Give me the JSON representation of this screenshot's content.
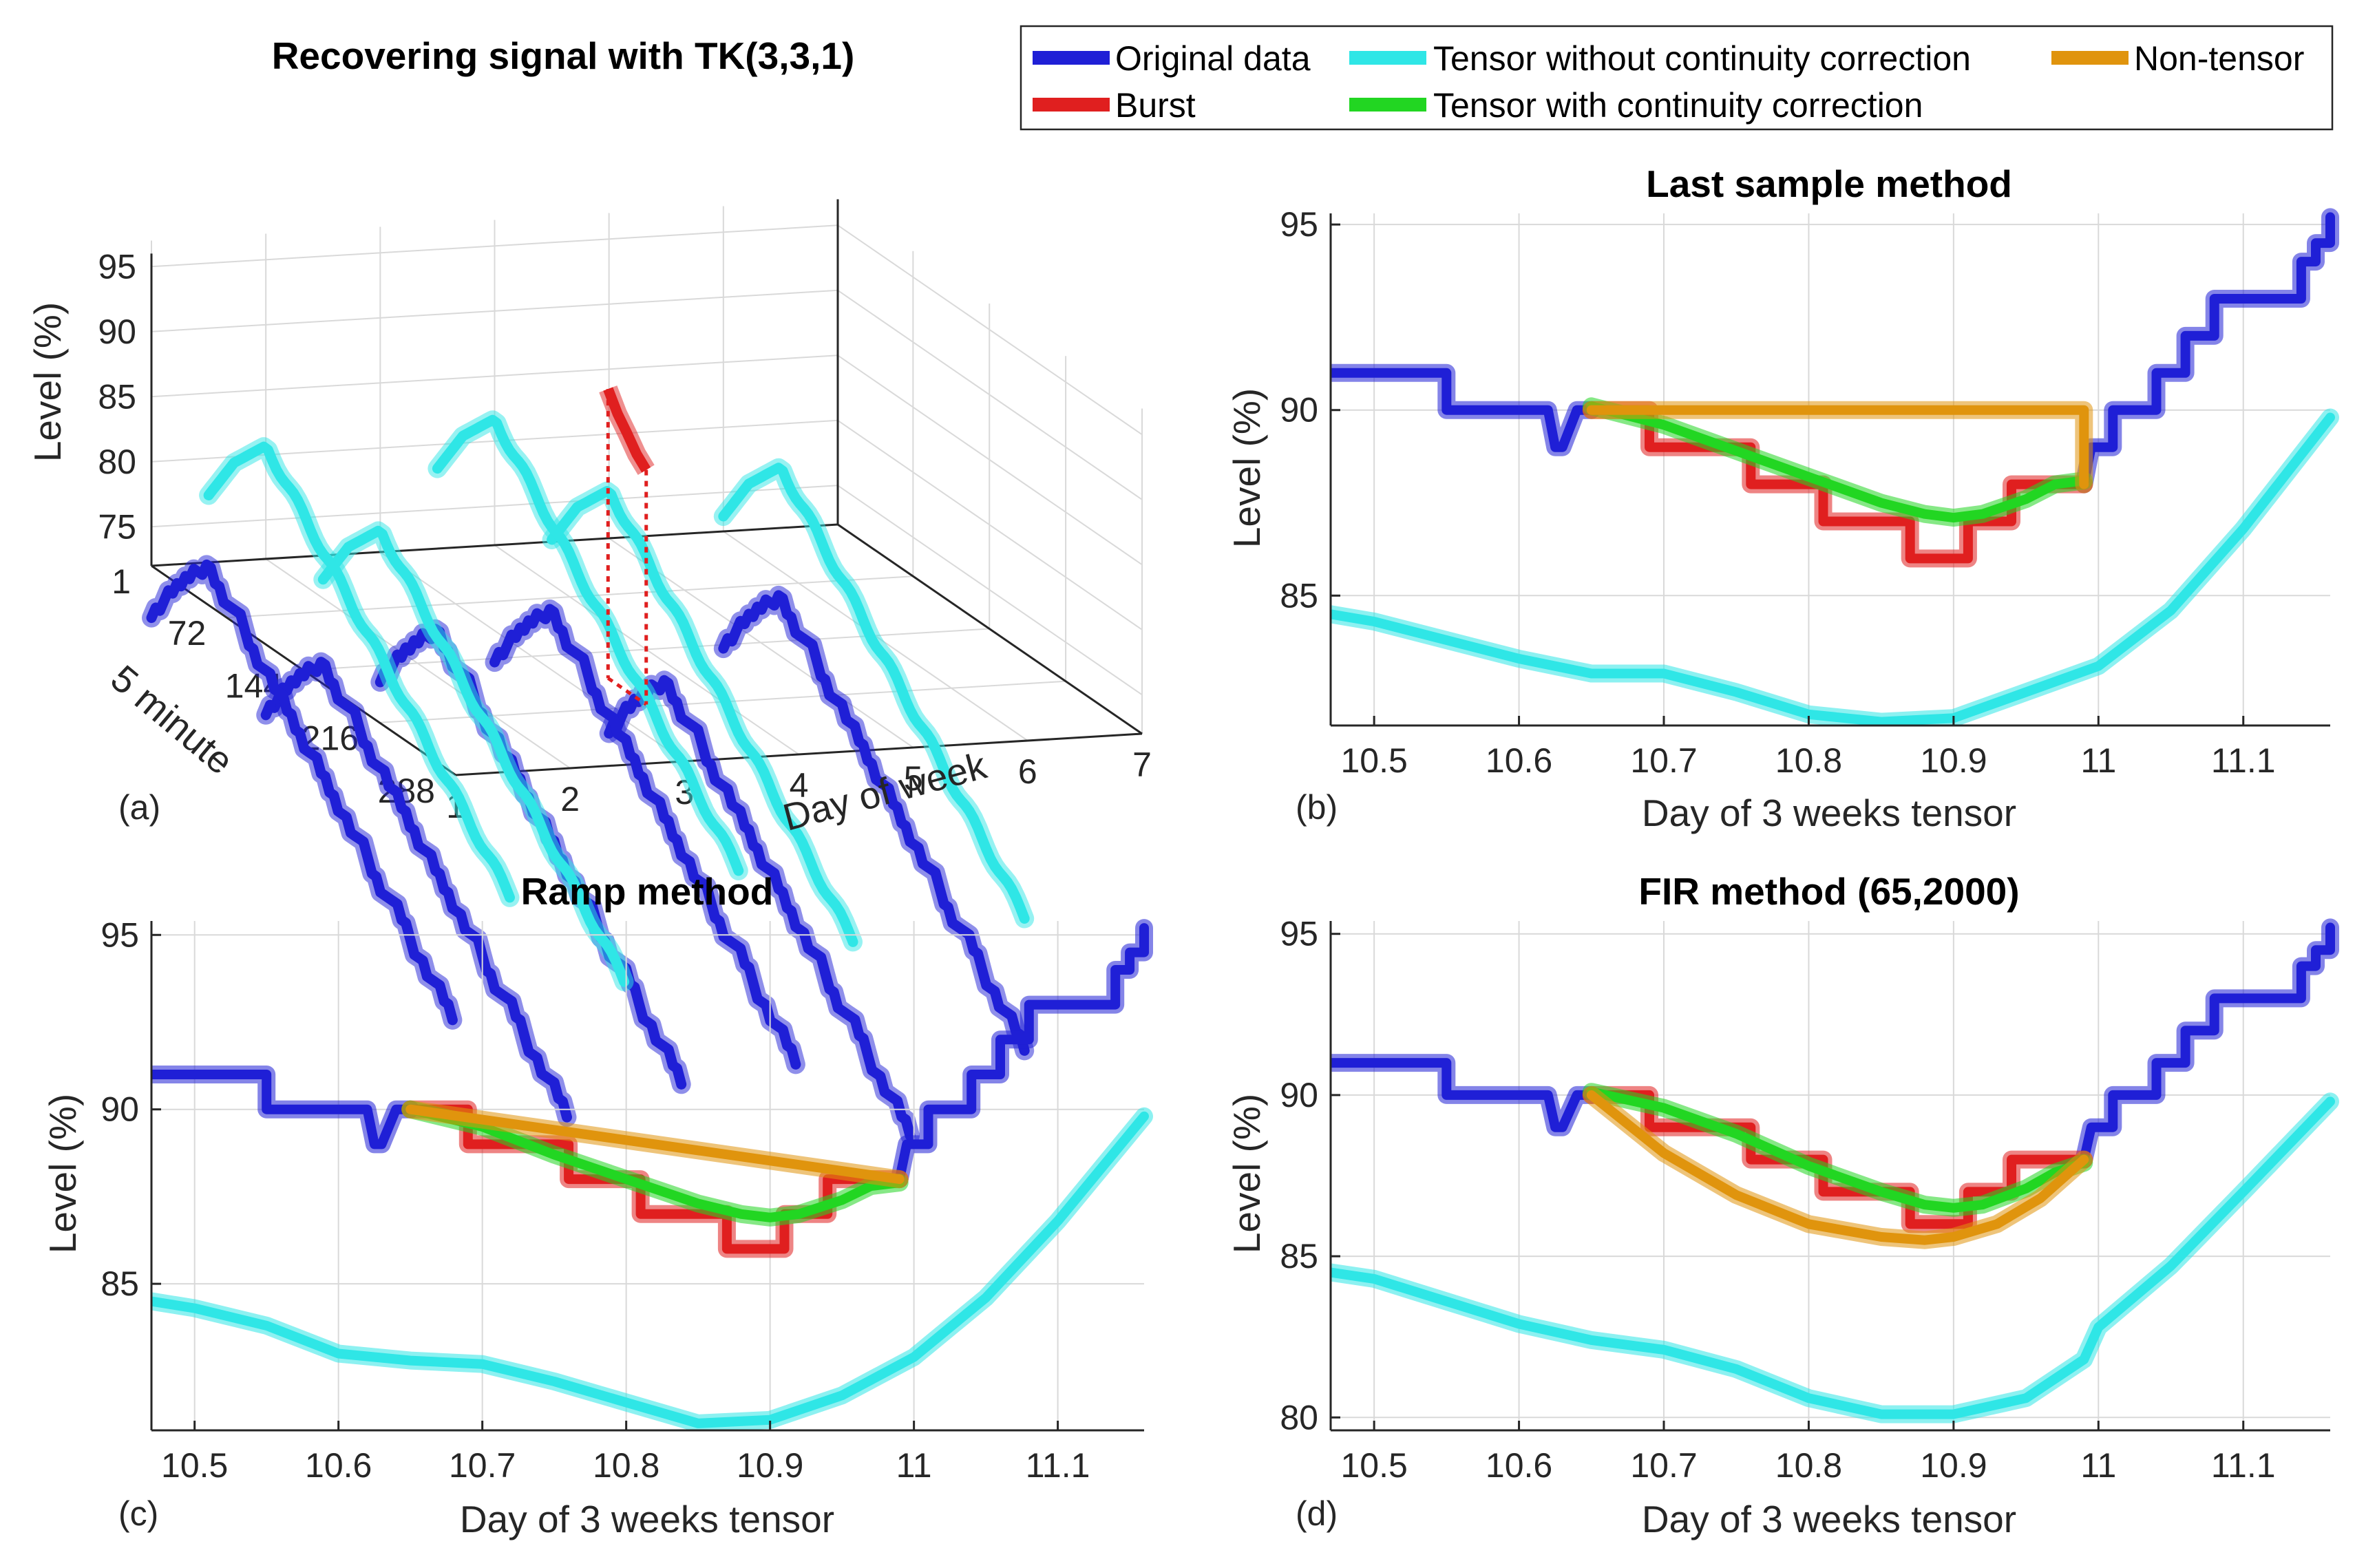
{
  "colors": {
    "original": "#1f1fd6",
    "burst": "#e01f1f",
    "tensor_no_corr": "#2fe6e6",
    "tensor_corr": "#22d622",
    "non_tensor": "#e0940d"
  },
  "legend": {
    "original": "Original data",
    "tensor_no_corr": "Tensor without continuity correction",
    "non_tensor": "Non-tensor",
    "burst": "Burst",
    "tensor_corr": "Tensor with continuity correction"
  },
  "chart_data": [
    {
      "id": "a",
      "panel_label": "(a)",
      "type": "line",
      "title": "Recovering signal with TK(3,3,1)",
      "xlabel": "Day of week",
      "ylabel": "5 minute",
      "zlabel": "Level (%)",
      "x_ticks": [
        "1",
        "2",
        "3",
        "4",
        "5",
        "6",
        "7"
      ],
      "y_ticks": [
        "1",
        "72",
        "144",
        "216",
        "288"
      ],
      "z_ticks": [
        "75",
        "80",
        "85",
        "90",
        "95"
      ],
      "xlim": [
        1,
        7
      ],
      "ylim": [
        1,
        288
      ],
      "zlim": [
        72,
        97
      ],
      "series": [
        {
          "name": "Original data",
          "color_key": "original",
          "curves": [
            {
              "day": 1,
              "start": 68
            },
            {
              "day": 2,
              "start": 60
            },
            {
              "day": 3,
              "start": 62
            },
            {
              "day": 4,
              "start": 63
            },
            {
              "day": 5,
              "start": 57
            },
            {
              "day": 6,
              "start": 63
            }
          ]
        },
        {
          "name": "Tensor without continuity correction",
          "color_key": "tensor_no_corr",
          "curves": [
            {
              "day": 1.5,
              "start": 77
            },
            {
              "day": 2.5,
              "start": 70
            },
            {
              "day": 3.5,
              "start": 78
            },
            {
              "day": 4.5,
              "start": 72
            },
            {
              "day": 6,
              "start": 73
            }
          ]
        },
        {
          "name": "Burst",
          "color_key": "burst",
          "day": 4,
          "y_range": [
            108,
            144
          ],
          "values": [
            90.0,
            88.6,
            87.6,
            86.5,
            85.8
          ]
        }
      ]
    },
    {
      "id": "b",
      "panel_label": "(b)",
      "type": "line",
      "title": "Last sample method",
      "xlabel": "Day of 3 weeks tensor",
      "ylabel": "Level (%)",
      "xlim": [
        10.47,
        11.16
      ],
      "ylim": [
        81.5,
        95.3
      ],
      "x_ticks": [
        10.5,
        10.6,
        10.7,
        10.8,
        10.9,
        11,
        11.1
      ],
      "x_tick_labels": [
        "10.5",
        "10.6",
        "10.7",
        "10.8",
        "10.9",
        "11",
        "11.1"
      ],
      "y_ticks": [
        85,
        90,
        95
      ],
      "y_tick_labels": [
        "85",
        "90",
        "95"
      ],
      "series": [
        {
          "name": "Original data",
          "color_key": "original",
          "x": [
            10.47,
            10.55,
            10.55,
            10.62,
            10.625,
            10.63,
            10.64,
            10.65
          ],
          "y": [
            91,
            91,
            90,
            90,
            89,
            89,
            90,
            90
          ]
        },
        {
          "name": "Original data",
          "color_key": "original",
          "x": [
            10.99,
            10.995,
            11.01,
            11.01,
            11.04,
            11.04,
            11.06,
            11.06,
            11.08,
            11.08,
            11.1,
            11.1,
            11.14,
            11.14,
            11.15,
            11.15,
            11.16,
            11.16
          ],
          "y": [
            88,
            89,
            89,
            90,
            90,
            91,
            91,
            92,
            92,
            93,
            93,
            93,
            93,
            94,
            94,
            94.5,
            94.5,
            95.2
          ]
        },
        {
          "name": "Burst",
          "color_key": "burst",
          "x": [
            10.65,
            10.69,
            10.69,
            10.76,
            10.76,
            10.81,
            10.81,
            10.87,
            10.87,
            10.91,
            10.91,
            10.94,
            10.94,
            10.99,
            10.99
          ],
          "y": [
            90,
            90,
            89,
            89,
            88,
            88,
            87,
            87,
            86,
            86,
            87,
            87,
            88,
            88,
            88
          ]
        },
        {
          "name": "Tensor with continuity correction",
          "color_key": "tensor_corr",
          "x": [
            10.65,
            10.7,
            10.75,
            10.8,
            10.85,
            10.88,
            10.9,
            10.92,
            10.95,
            10.97,
            10.99
          ],
          "y": [
            90.1,
            89.6,
            88.9,
            88.2,
            87.5,
            87.2,
            87.1,
            87.2,
            87.6,
            88.0,
            88.1
          ]
        },
        {
          "name": "Non-tensor",
          "color_key": "non_tensor",
          "x": [
            10.65,
            10.99,
            10.99
          ],
          "y": [
            90,
            90,
            88
          ]
        },
        {
          "name": "Tensor without continuity correction",
          "color_key": "tensor_no_corr",
          "x": [
            10.47,
            10.5,
            10.55,
            10.6,
            10.65,
            10.7,
            10.75,
            10.8,
            10.85,
            10.9,
            10.95,
            11,
            11.05,
            11.1,
            11.16
          ],
          "y": [
            84.5,
            84.3,
            83.8,
            83.3,
            82.9,
            82.9,
            82.4,
            81.8,
            81.6,
            81.7,
            82.4,
            83.1,
            84.6,
            86.8,
            89.8
          ]
        }
      ]
    },
    {
      "id": "c",
      "panel_label": "(c)",
      "type": "line",
      "title": "Ramp method",
      "xlabel": "Day of 3 weeks tensor",
      "ylabel": "Level (%)",
      "xlim": [
        10.47,
        11.16
      ],
      "ylim": [
        80.8,
        95.4
      ],
      "x_ticks": [
        10.5,
        10.6,
        10.7,
        10.8,
        10.9,
        11,
        11.1
      ],
      "x_tick_labels": [
        "10.5",
        "10.6",
        "10.7",
        "10.8",
        "10.9",
        "11",
        "11.1"
      ],
      "y_ticks": [
        85,
        90,
        95
      ],
      "y_tick_labels": [
        "85",
        "90",
        "95"
      ],
      "series": [
        {
          "name": "Original data",
          "color_key": "original",
          "x": [
            10.47,
            10.55,
            10.55,
            10.62,
            10.625,
            10.63,
            10.64,
            10.65
          ],
          "y": [
            91,
            91,
            90,
            90,
            89,
            89,
            90,
            90
          ]
        },
        {
          "name": "Original data",
          "color_key": "original",
          "x": [
            10.99,
            10.995,
            11.01,
            11.01,
            11.04,
            11.04,
            11.06,
            11.06,
            11.08,
            11.08,
            11.1,
            11.1,
            11.14,
            11.14,
            11.15,
            11.15,
            11.16,
            11.16
          ],
          "y": [
            88,
            89,
            89,
            90,
            90,
            91,
            91,
            92,
            92,
            93,
            93,
            93,
            93,
            94,
            94,
            94.5,
            94.5,
            95.2
          ]
        },
        {
          "name": "Burst",
          "color_key": "burst",
          "x": [
            10.65,
            10.69,
            10.69,
            10.76,
            10.76,
            10.81,
            10.81,
            10.87,
            10.87,
            10.91,
            10.91,
            10.94,
            10.94,
            10.99,
            10.99
          ],
          "y": [
            90,
            90,
            89,
            89,
            88,
            88,
            87,
            87,
            86,
            86,
            87,
            87,
            88,
            88,
            88
          ]
        },
        {
          "name": "Tensor with continuity correction",
          "color_key": "tensor_corr",
          "x": [
            10.65,
            10.7,
            10.75,
            10.8,
            10.85,
            10.88,
            10.9,
            10.92,
            10.95,
            10.97,
            10.99
          ],
          "y": [
            90.0,
            89.5,
            88.7,
            88.0,
            87.3,
            87.0,
            86.9,
            87.0,
            87.4,
            87.8,
            87.9
          ]
        },
        {
          "name": "Non-tensor",
          "color_key": "non_tensor",
          "x": [
            10.65,
            10.99
          ],
          "y": [
            90,
            88
          ]
        },
        {
          "name": "Tensor without continuity correction",
          "color_key": "tensor_no_corr",
          "x": [
            10.47,
            10.5,
            10.55,
            10.6,
            10.65,
            10.7,
            10.75,
            10.8,
            10.85,
            10.9,
            10.95,
            11,
            11.05,
            11.1,
            11.16
          ],
          "y": [
            84.5,
            84.3,
            83.8,
            83.0,
            82.8,
            82.7,
            82.2,
            81.6,
            81.0,
            81.1,
            81.8,
            82.9,
            84.6,
            86.8,
            89.8
          ]
        }
      ]
    },
    {
      "id": "d",
      "panel_label": "(d)",
      "type": "line",
      "title": "FIR method (65,2000)",
      "xlabel": "Day of 3 weeks tensor",
      "ylabel": "Level (%)",
      "xlim": [
        10.47,
        11.16
      ],
      "ylim": [
        79.6,
        95.4
      ],
      "x_ticks": [
        10.5,
        10.6,
        10.7,
        10.8,
        10.9,
        11,
        11.1
      ],
      "x_tick_labels": [
        "10.5",
        "10.6",
        "10.7",
        "10.8",
        "10.9",
        "11",
        "11.1"
      ],
      "y_ticks": [
        80,
        85,
        90,
        95
      ],
      "y_tick_labels": [
        "80",
        "85",
        "90",
        "95"
      ],
      "series": [
        {
          "name": "Original data",
          "color_key": "original",
          "x": [
            10.47,
            10.55,
            10.55,
            10.62,
            10.625,
            10.63,
            10.64,
            10.65
          ],
          "y": [
            91,
            91,
            90,
            90,
            89,
            89,
            90,
            90
          ]
        },
        {
          "name": "Original data",
          "color_key": "original",
          "x": [
            10.99,
            10.995,
            11.01,
            11.01,
            11.04,
            11.04,
            11.06,
            11.06,
            11.08,
            11.08,
            11.1,
            11.1,
            11.14,
            11.14,
            11.15,
            11.15,
            11.16,
            11.16
          ],
          "y": [
            88,
            89,
            89,
            90,
            90,
            91,
            91,
            92,
            92,
            93,
            93,
            93,
            93,
            94,
            94,
            94.5,
            94.5,
            95.2
          ]
        },
        {
          "name": "Burst",
          "color_key": "burst",
          "x": [
            10.65,
            10.69,
            10.69,
            10.76,
            10.76,
            10.81,
            10.81,
            10.87,
            10.87,
            10.91,
            10.91,
            10.94,
            10.94,
            10.99,
            10.99
          ],
          "y": [
            90,
            90,
            89,
            89,
            88,
            88,
            87,
            87,
            86,
            86,
            87,
            87,
            88,
            88,
            88
          ]
        },
        {
          "name": "Tensor with continuity correction",
          "color_key": "tensor_corr",
          "x": [
            10.65,
            10.7,
            10.75,
            10.8,
            10.85,
            10.88,
            10.9,
            10.92,
            10.95,
            10.97,
            10.99
          ],
          "y": [
            90.1,
            89.6,
            88.8,
            87.8,
            87.0,
            86.6,
            86.5,
            86.6,
            87.1,
            87.6,
            87.9
          ]
        },
        {
          "name": "Non-tensor",
          "color_key": "non_tensor",
          "x": [
            10.65,
            10.7,
            10.75,
            10.8,
            10.85,
            10.88,
            10.9,
            10.93,
            10.96,
            10.99
          ],
          "y": [
            90,
            88.2,
            86.9,
            86.0,
            85.6,
            85.5,
            85.6,
            86.0,
            86.8,
            88.0
          ]
        },
        {
          "name": "Tensor without continuity correction",
          "color_key": "tensor_no_corr",
          "x": [
            10.47,
            10.5,
            10.55,
            10.6,
            10.65,
            10.7,
            10.75,
            10.8,
            10.85,
            10.9,
            10.95,
            10.99,
            11,
            11.05,
            11.1,
            11.16
          ],
          "y": [
            84.5,
            84.3,
            83.6,
            82.9,
            82.4,
            82.1,
            81.5,
            80.6,
            80.1,
            80.1,
            80.6,
            81.8,
            82.8,
            84.7,
            87.0,
            89.8
          ]
        }
      ]
    }
  ]
}
